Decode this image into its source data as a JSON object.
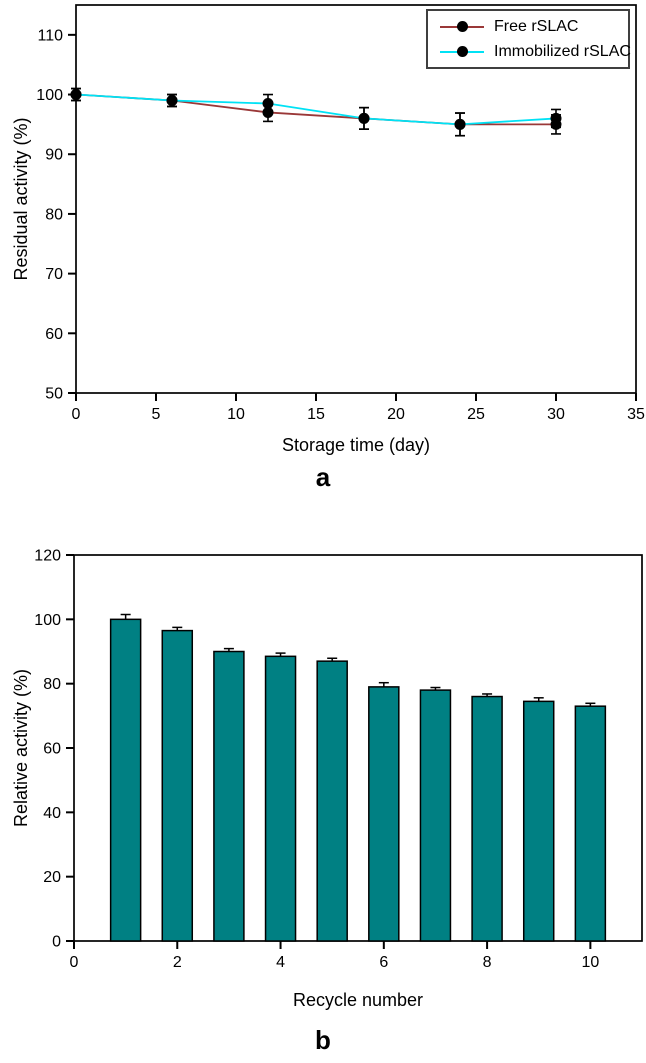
{
  "figure": {
    "panels": [
      {
        "label": "a"
      },
      {
        "label": "b"
      }
    ]
  },
  "chart_data": [
    {
      "id": "a",
      "type": "line",
      "title": "",
      "xlabel": "Storage time (day)",
      "ylabel": "Residual activity (%)",
      "xlim": [
        0,
        35
      ],
      "ylim": [
        50,
        115
      ],
      "xticks": [
        0,
        5,
        10,
        15,
        20,
        25,
        30,
        35
      ],
      "yticks": [
        50,
        60,
        70,
        80,
        90,
        100,
        110
      ],
      "grid": false,
      "legend_position": "top-right",
      "marker": {
        "shape": "circle",
        "color": "#000000"
      },
      "x": [
        0,
        6,
        12,
        18,
        24,
        30
      ],
      "series": [
        {
          "name": "Free rSLAC",
          "color": "#9a3838",
          "values": [
            100,
            99,
            97,
            96,
            95,
            95
          ],
          "errors": [
            1.0,
            1.0,
            1.5,
            1.8,
            1.9,
            1.6
          ]
        },
        {
          "name": "Immobilized rSLAC",
          "color": "#00e2f5",
          "values": [
            100,
            99,
            98.5,
            96,
            95,
            96
          ],
          "errors": [
            1.0,
            1.0,
            1.5,
            1.8,
            1.9,
            1.5
          ]
        }
      ]
    },
    {
      "id": "b",
      "type": "bar",
      "title": "",
      "xlabel": "Recycle number",
      "ylabel": "Relative activity (%)",
      "xlim": [
        0,
        11
      ],
      "ylim": [
        0,
        120
      ],
      "xticks": [
        0,
        2,
        4,
        6,
        8,
        10
      ],
      "yticks": [
        0,
        20,
        40,
        60,
        80,
        100,
        120
      ],
      "grid": false,
      "bar_color": "#008083",
      "bar_outline": "#000000",
      "categories": [
        1,
        2,
        3,
        4,
        5,
        6,
        7,
        8,
        9,
        10
      ],
      "values": [
        100,
        96.5,
        90,
        88.5,
        87,
        79,
        78,
        76,
        74.5,
        73
      ],
      "errors": [
        1.5,
        1.0,
        0.9,
        1.0,
        0.9,
        1.3,
        0.8,
        0.8,
        1.1,
        0.9
      ]
    }
  ]
}
